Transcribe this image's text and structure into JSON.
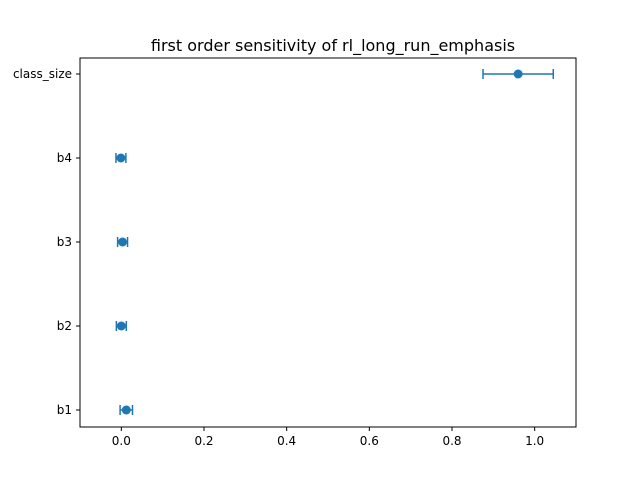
{
  "chart_data": {
    "type": "scatter",
    "subtype": "errorbar",
    "orientation": "horizontal",
    "title": "first order sensitivity of rl_long_run_emphasis",
    "xlabel": "",
    "ylabel": "",
    "xlim": [
      -0.1,
      1.1
    ],
    "x_ticks": [
      "0.0",
      "0.2",
      "0.4",
      "0.6",
      "0.8",
      "1.0"
    ],
    "categories": [
      "b1",
      "b2",
      "b3",
      "b4",
      "class_size"
    ],
    "series": [
      {
        "values": [
          0.012,
          0.0,
          0.003,
          -0.001,
          0.96
        ],
        "errors": [
          0.015,
          0.012,
          0.012,
          0.012,
          0.085
        ]
      }
    ],
    "color": "#1f77b4",
    "grid": false,
    "legend": "none"
  }
}
